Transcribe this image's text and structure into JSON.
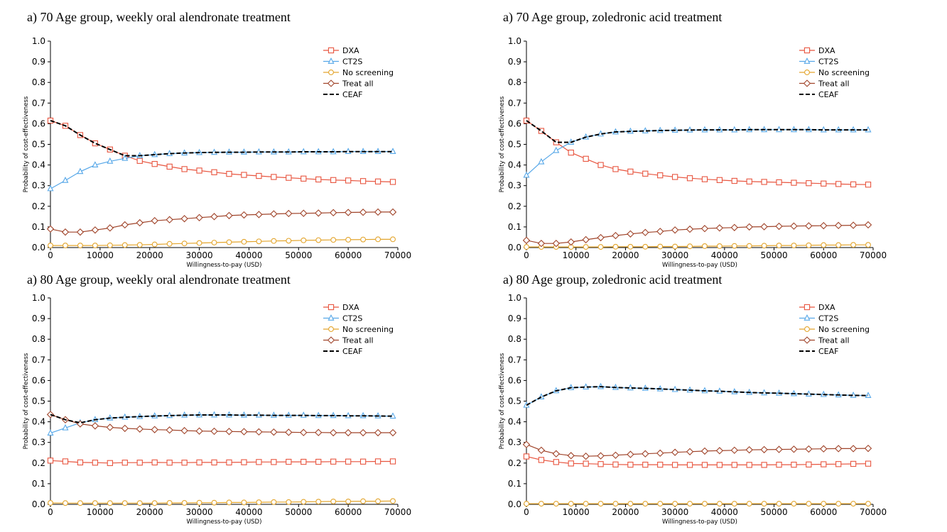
{
  "chart_data": [
    {
      "type": "line",
      "title": "a) 70 Age group, weekly oral alendronate treatment",
      "xlabel": "Willingness-to-pay (USD)",
      "ylabel": "Probability of cost-effectiveness",
      "xlim": [
        0,
        70000
      ],
      "ylim": [
        0,
        1.0
      ],
      "x_ticks": [
        "0",
        "10000",
        "20000",
        "30000",
        "40000",
        "50000",
        "60000",
        "70000"
      ],
      "y_ticks": [
        "0.0",
        "0.1",
        "0.2",
        "0.3",
        "0.4",
        "0.5",
        "0.6",
        "0.7",
        "0.8",
        "0.9",
        "1.0"
      ],
      "legend_position": "top-right",
      "x": [
        0,
        3000,
        6000,
        9000,
        12000,
        15000,
        18000,
        21000,
        24000,
        27000,
        30000,
        33000,
        36000,
        39000,
        42000,
        45000,
        48000,
        51000,
        54000,
        57000,
        60000,
        63000,
        66000,
        69000
      ],
      "series": [
        {
          "name": "DXA",
          "color": "#e8553f",
          "marker": "square",
          "values": [
            0.615,
            0.59,
            0.545,
            0.505,
            0.475,
            0.445,
            0.42,
            0.405,
            0.392,
            0.38,
            0.373,
            0.365,
            0.357,
            0.352,
            0.347,
            0.342,
            0.338,
            0.334,
            0.33,
            0.327,
            0.325,
            0.322,
            0.32,
            0.318
          ]
        },
        {
          "name": "CT2S",
          "color": "#56a7e8",
          "marker": "triangle",
          "values": [
            0.285,
            0.325,
            0.368,
            0.4,
            0.418,
            0.432,
            0.445,
            0.45,
            0.455,
            0.458,
            0.46,
            0.461,
            0.462,
            0.462,
            0.463,
            0.463,
            0.463,
            0.464,
            0.464,
            0.464,
            0.465,
            0.465,
            0.465,
            0.465
          ]
        },
        {
          "name": "No screening",
          "color": "#e3a52d",
          "marker": "circle",
          "values": [
            0.01,
            0.01,
            0.01,
            0.01,
            0.011,
            0.012,
            0.013,
            0.015,
            0.018,
            0.02,
            0.022,
            0.024,
            0.026,
            0.028,
            0.03,
            0.032,
            0.033,
            0.035,
            0.036,
            0.037,
            0.038,
            0.039,
            0.04,
            0.04
          ]
        },
        {
          "name": "Treat all",
          "color": "#a0442a",
          "marker": "diamond",
          "values": [
            0.09,
            0.075,
            0.075,
            0.085,
            0.095,
            0.11,
            0.12,
            0.13,
            0.135,
            0.14,
            0.145,
            0.15,
            0.155,
            0.158,
            0.16,
            0.163,
            0.165,
            0.166,
            0.167,
            0.169,
            0.17,
            0.171,
            0.172,
            0.172
          ]
        },
        {
          "name": "CEAF",
          "color": "#000000",
          "marker": "none",
          "dashed": true,
          "values": [
            0.615,
            0.59,
            0.545,
            0.505,
            0.475,
            0.445,
            0.445,
            0.45,
            0.455,
            0.458,
            0.46,
            0.461,
            0.462,
            0.462,
            0.463,
            0.463,
            0.463,
            0.464,
            0.464,
            0.464,
            0.465,
            0.465,
            0.465,
            0.465
          ]
        }
      ]
    },
    {
      "type": "line",
      "title": "a) 70 Age group, zoledronic acid treatment",
      "xlabel": "Willingness-to-pay (USD)",
      "ylabel": "Probability of cost-effectiveness",
      "xlim": [
        0,
        70000
      ],
      "ylim": [
        0,
        1.0
      ],
      "x_ticks": [
        "0",
        "10000",
        "20000",
        "30000",
        "40000",
        "50000",
        "60000",
        "70000"
      ],
      "y_ticks": [
        "0.0",
        "0.1",
        "0.2",
        "0.3",
        "0.4",
        "0.5",
        "0.6",
        "0.7",
        "0.8",
        "0.9",
        "1.0"
      ],
      "legend_position": "top-right",
      "x": [
        0,
        3000,
        6000,
        9000,
        12000,
        15000,
        18000,
        21000,
        24000,
        27000,
        30000,
        33000,
        36000,
        39000,
        42000,
        45000,
        48000,
        51000,
        54000,
        57000,
        60000,
        63000,
        66000,
        69000
      ],
      "series": [
        {
          "name": "DXA",
          "color": "#e8553f",
          "marker": "square",
          "values": [
            0.615,
            0.565,
            0.51,
            0.46,
            0.43,
            0.4,
            0.38,
            0.368,
            0.358,
            0.35,
            0.342,
            0.336,
            0.331,
            0.327,
            0.323,
            0.32,
            0.318,
            0.316,
            0.314,
            0.312,
            0.31,
            0.308,
            0.306,
            0.305
          ]
        },
        {
          "name": "CT2S",
          "color": "#56a7e8",
          "marker": "triangle",
          "values": [
            0.35,
            0.415,
            0.47,
            0.51,
            0.535,
            0.55,
            0.56,
            0.563,
            0.565,
            0.567,
            0.568,
            0.569,
            0.57,
            0.57,
            0.57,
            0.571,
            0.571,
            0.571,
            0.571,
            0.571,
            0.57,
            0.57,
            0.57,
            0.57
          ]
        },
        {
          "name": "No screening",
          "color": "#e3a52d",
          "marker": "circle",
          "values": [
            0.003,
            0.003,
            0.003,
            0.003,
            0.003,
            0.003,
            0.004,
            0.004,
            0.004,
            0.005,
            0.005,
            0.006,
            0.007,
            0.007,
            0.008,
            0.008,
            0.009,
            0.01,
            0.01,
            0.011,
            0.012,
            0.012,
            0.013,
            0.013
          ]
        },
        {
          "name": "Treat all",
          "color": "#a0442a",
          "marker": "diamond",
          "values": [
            0.035,
            0.02,
            0.02,
            0.027,
            0.038,
            0.048,
            0.058,
            0.066,
            0.073,
            0.078,
            0.085,
            0.089,
            0.092,
            0.095,
            0.097,
            0.1,
            0.101,
            0.103,
            0.104,
            0.105,
            0.106,
            0.107,
            0.108,
            0.11
          ]
        },
        {
          "name": "CEAF",
          "color": "#000000",
          "marker": "none",
          "dashed": true,
          "values": [
            0.615,
            0.565,
            0.51,
            0.51,
            0.535,
            0.55,
            0.56,
            0.563,
            0.565,
            0.567,
            0.568,
            0.569,
            0.57,
            0.57,
            0.57,
            0.571,
            0.571,
            0.571,
            0.571,
            0.571,
            0.57,
            0.57,
            0.57,
            0.57
          ]
        }
      ]
    },
    {
      "type": "line",
      "title": "a) 80 Age group, weekly oral alendronate treatment",
      "xlabel": "Willingness-to-pay (USD)",
      "ylabel": "Probability of cost-effectiveness",
      "xlim": [
        0,
        70000
      ],
      "ylim": [
        0,
        1.0
      ],
      "x_ticks": [
        "0",
        "10000",
        "20000",
        "30000",
        "40000",
        "50000",
        "60000",
        "70000"
      ],
      "y_ticks": [
        "0.0",
        "0.1",
        "0.2",
        "0.3",
        "0.4",
        "0.5",
        "0.6",
        "0.7",
        "0.8",
        "0.9",
        "1.0"
      ],
      "legend_position": "top-right",
      "x": [
        0,
        3000,
        6000,
        9000,
        12000,
        15000,
        18000,
        21000,
        24000,
        27000,
        30000,
        33000,
        36000,
        39000,
        42000,
        45000,
        48000,
        51000,
        54000,
        57000,
        60000,
        63000,
        66000,
        69000
      ],
      "series": [
        {
          "name": "DXA",
          "color": "#e8553f",
          "marker": "square",
          "values": [
            0.212,
            0.208,
            0.203,
            0.202,
            0.2,
            0.202,
            0.202,
            0.203,
            0.202,
            0.202,
            0.203,
            0.203,
            0.203,
            0.204,
            0.205,
            0.205,
            0.206,
            0.206,
            0.206,
            0.207,
            0.207,
            0.207,
            0.208,
            0.208
          ]
        },
        {
          "name": "CT2S",
          "color": "#56a7e8",
          "marker": "triangle",
          "values": [
            0.345,
            0.37,
            0.395,
            0.41,
            0.418,
            0.422,
            0.425,
            0.428,
            0.43,
            0.432,
            0.433,
            0.433,
            0.433,
            0.432,
            0.432,
            0.431,
            0.431,
            0.431,
            0.43,
            0.43,
            0.429,
            0.429,
            0.428,
            0.427
          ]
        },
        {
          "name": "No screening",
          "color": "#e3a52d",
          "marker": "circle",
          "values": [
            0.007,
            0.006,
            0.006,
            0.006,
            0.006,
            0.006,
            0.006,
            0.006,
            0.007,
            0.007,
            0.008,
            0.008,
            0.009,
            0.009,
            0.01,
            0.011,
            0.011,
            0.012,
            0.013,
            0.014,
            0.014,
            0.015,
            0.015,
            0.016
          ]
        },
        {
          "name": "Treat all",
          "color": "#a0442a",
          "marker": "diamond",
          "values": [
            0.435,
            0.41,
            0.39,
            0.38,
            0.373,
            0.368,
            0.365,
            0.362,
            0.36,
            0.357,
            0.355,
            0.354,
            0.353,
            0.352,
            0.351,
            0.35,
            0.349,
            0.348,
            0.348,
            0.347,
            0.347,
            0.347,
            0.347,
            0.347
          ]
        },
        {
          "name": "CEAF",
          "color": "#000000",
          "marker": "none",
          "dashed": true,
          "values": [
            0.435,
            0.41,
            0.395,
            0.41,
            0.418,
            0.422,
            0.425,
            0.428,
            0.43,
            0.432,
            0.433,
            0.433,
            0.433,
            0.432,
            0.432,
            0.431,
            0.431,
            0.431,
            0.43,
            0.43,
            0.429,
            0.429,
            0.428,
            0.427
          ]
        }
      ]
    },
    {
      "type": "line",
      "title": "a) 80 Age group, zoledronic acid treatment",
      "xlabel": "Willingness-to-pay (USD)",
      "ylabel": "Probability of cost-effectiveness",
      "xlim": [
        0,
        70000
      ],
      "ylim": [
        0,
        1.0
      ],
      "x_ticks": [
        "0",
        "10000",
        "20000",
        "30000",
        "40000",
        "50000",
        "60000",
        "70000"
      ],
      "y_ticks": [
        "0.0",
        "0.1",
        "0.2",
        "0.3",
        "0.4",
        "0.5",
        "0.6",
        "0.7",
        "0.8",
        "0.9",
        "1.0"
      ],
      "legend_position": "top-right",
      "x": [
        0,
        3000,
        6000,
        9000,
        12000,
        15000,
        18000,
        21000,
        24000,
        27000,
        30000,
        33000,
        36000,
        39000,
        42000,
        45000,
        48000,
        51000,
        54000,
        57000,
        60000,
        63000,
        66000,
        69000
      ],
      "series": [
        {
          "name": "DXA",
          "color": "#e8553f",
          "marker": "square",
          "values": [
            0.232,
            0.215,
            0.205,
            0.198,
            0.197,
            0.195,
            0.193,
            0.192,
            0.192,
            0.192,
            0.191,
            0.191,
            0.191,
            0.191,
            0.191,
            0.191,
            0.191,
            0.192,
            0.192,
            0.193,
            0.194,
            0.195,
            0.196,
            0.197
          ]
        },
        {
          "name": "CT2S",
          "color": "#56a7e8",
          "marker": "triangle",
          "values": [
            0.48,
            0.52,
            0.55,
            0.565,
            0.568,
            0.57,
            0.566,
            0.564,
            0.562,
            0.559,
            0.556,
            0.553,
            0.55,
            0.548,
            0.545,
            0.542,
            0.54,
            0.538,
            0.536,
            0.534,
            0.532,
            0.53,
            0.528,
            0.527
          ]
        },
        {
          "name": "No screening",
          "color": "#e3a52d",
          "marker": "circle",
          "values": [
            0.003,
            0.003,
            0.003,
            0.003,
            0.003,
            0.003,
            0.003,
            0.003,
            0.003,
            0.003,
            0.003,
            0.003,
            0.003,
            0.003,
            0.003,
            0.003,
            0.003,
            0.003,
            0.003,
            0.003,
            0.003,
            0.003,
            0.003,
            0.003
          ]
        },
        {
          "name": "Treat all",
          "color": "#a0442a",
          "marker": "diamond",
          "values": [
            0.29,
            0.262,
            0.245,
            0.236,
            0.233,
            0.235,
            0.238,
            0.242,
            0.245,
            0.248,
            0.252,
            0.255,
            0.258,
            0.26,
            0.262,
            0.264,
            0.265,
            0.266,
            0.267,
            0.268,
            0.269,
            0.27,
            0.27,
            0.271
          ]
        },
        {
          "name": "CEAF",
          "color": "#000000",
          "marker": "none",
          "dashed": true,
          "values": [
            0.48,
            0.52,
            0.55,
            0.565,
            0.568,
            0.57,
            0.566,
            0.564,
            0.562,
            0.559,
            0.556,
            0.553,
            0.55,
            0.548,
            0.545,
            0.542,
            0.54,
            0.538,
            0.536,
            0.534,
            0.532,
            0.53,
            0.528,
            0.527
          ]
        }
      ]
    }
  ]
}
